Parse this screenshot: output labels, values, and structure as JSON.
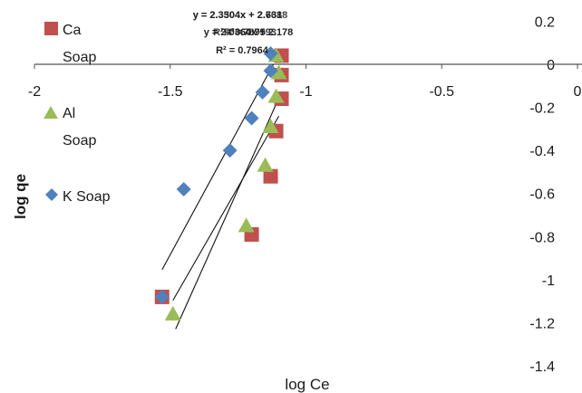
{
  "chart_data": {
    "type": "scatter",
    "xlabel": "log Ce",
    "ylabel": "log qe",
    "xlim": [
      -2,
      0
    ],
    "ylim": [
      -1.4,
      0.2
    ],
    "x_ticks": [
      -2,
      -1.5,
      -1,
      -0.5,
      0
    ],
    "x_tick_labels": [
      "-2",
      "-1.5",
      "-1",
      "-0.5",
      "0"
    ],
    "y_ticks": [
      0.2,
      0,
      -0.2,
      -0.4,
      -0.6,
      -0.8,
      -1,
      -1.2,
      -1.4
    ],
    "y_tick_labels": [
      "0.2",
      "0",
      "-0.2",
      "-0.4",
      "-0.6",
      "-0.8",
      "-1",
      "-1.2",
      "-1.4"
    ],
    "grid": false,
    "legend_position": "left",
    "series": [
      {
        "name": "Ca Soap",
        "color": "#c0504d",
        "marker": "square",
        "x": [
          -1.53,
          -1.2,
          -1.13,
          -1.11,
          -1.09,
          -1.09,
          -1.09
        ],
        "y": [
          -1.08,
          -0.79,
          -0.52,
          -0.31,
          -0.16,
          -0.05,
          0.04
        ]
      },
      {
        "name": "Al Soap",
        "color": "#9bbb59",
        "marker": "triangle",
        "x": [
          -1.49,
          -1.22,
          -1.15,
          -1.13,
          -1.11,
          -1.1,
          -1.11
        ],
        "y": [
          -1.16,
          -0.75,
          -0.47,
          -0.29,
          -0.15,
          -0.04,
          0.04
        ]
      },
      {
        "name": "K Soap",
        "color": "#4f81bd",
        "marker": "diamond",
        "x": [
          -1.53,
          -1.45,
          -1.28,
          -1.2,
          -1.16,
          -1.13,
          -1.13
        ],
        "y": [
          -1.08,
          -0.58,
          -0.4,
          -0.25,
          -0.13,
          -0.03,
          0.05
        ]
      }
    ],
    "trendlines": [
      {
        "series": "K Soap",
        "x": [
          -1.53,
          -1.12
        ]
      },
      {
        "series": "Ca Soap",
        "x": [
          -1.49,
          -1.1
        ]
      },
      {
        "series": "Al Soap",
        "x": [
          -1.48,
          -1.1
        ]
      }
    ],
    "trendline_equations": [
      "y = 2.3304x + 2.631",
      "y = 2.0364x + 2.178",
      "R² = 0.7964"
    ],
    "trendline_eq_overlaps": [
      "y = 2.3504x + 2.7688",
      "R² = 0.7993",
      "R² = 0.7895"
    ]
  }
}
